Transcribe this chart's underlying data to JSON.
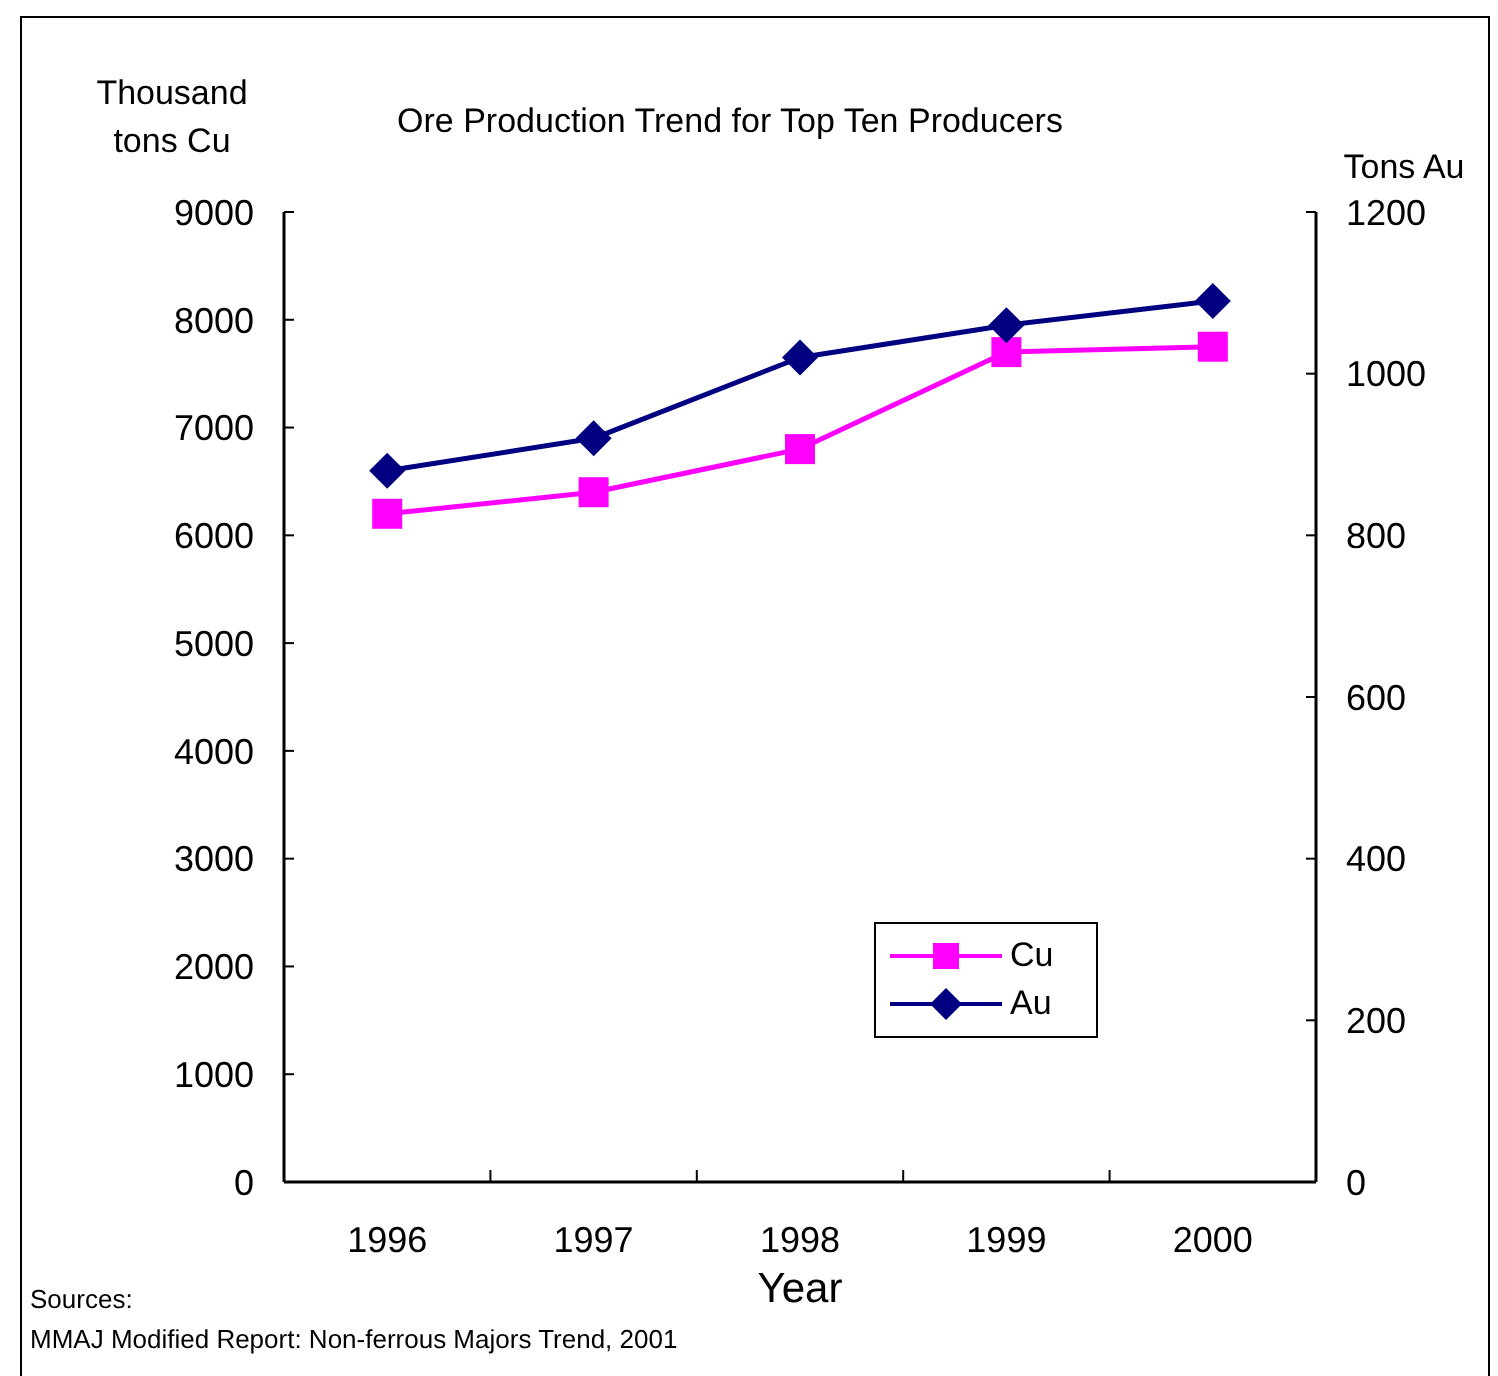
{
  "chart_data": {
    "type": "line",
    "title": "Ore Production Trend for Top Ten Producers",
    "xlabel": "Year",
    "ylabel": "Thousand tons Cu",
    "y2label": "Tons Au",
    "categories": [
      "1996",
      "1997",
      "1998",
      "1999",
      "2000"
    ],
    "series": [
      {
        "name": "Cu",
        "color": "#ff00ff",
        "marker": "square",
        "values": [
          6200,
          6400,
          6800,
          7700,
          7750
        ]
      },
      {
        "name": "Au",
        "color": "#000080",
        "marker": "diamond",
        "axis": "y2",
        "values": [
          880,
          920,
          1020,
          1060,
          1090
        ]
      }
    ],
    "ylim": [
      0,
      9000
    ],
    "yticks": [
      0,
      1000,
      2000,
      3000,
      4000,
      5000,
      6000,
      7000,
      8000,
      9000
    ],
    "y2lim": [
      0,
      1200
    ],
    "y2ticks": [
      0,
      200,
      400,
      600,
      800,
      1000,
      1200
    ],
    "legend": "bottom right",
    "line_style": "solid",
    "annotations": [
      "Sources:",
      "MMAJ Modified Report: Non-ferrous Majors Trend, 2001"
    ]
  }
}
